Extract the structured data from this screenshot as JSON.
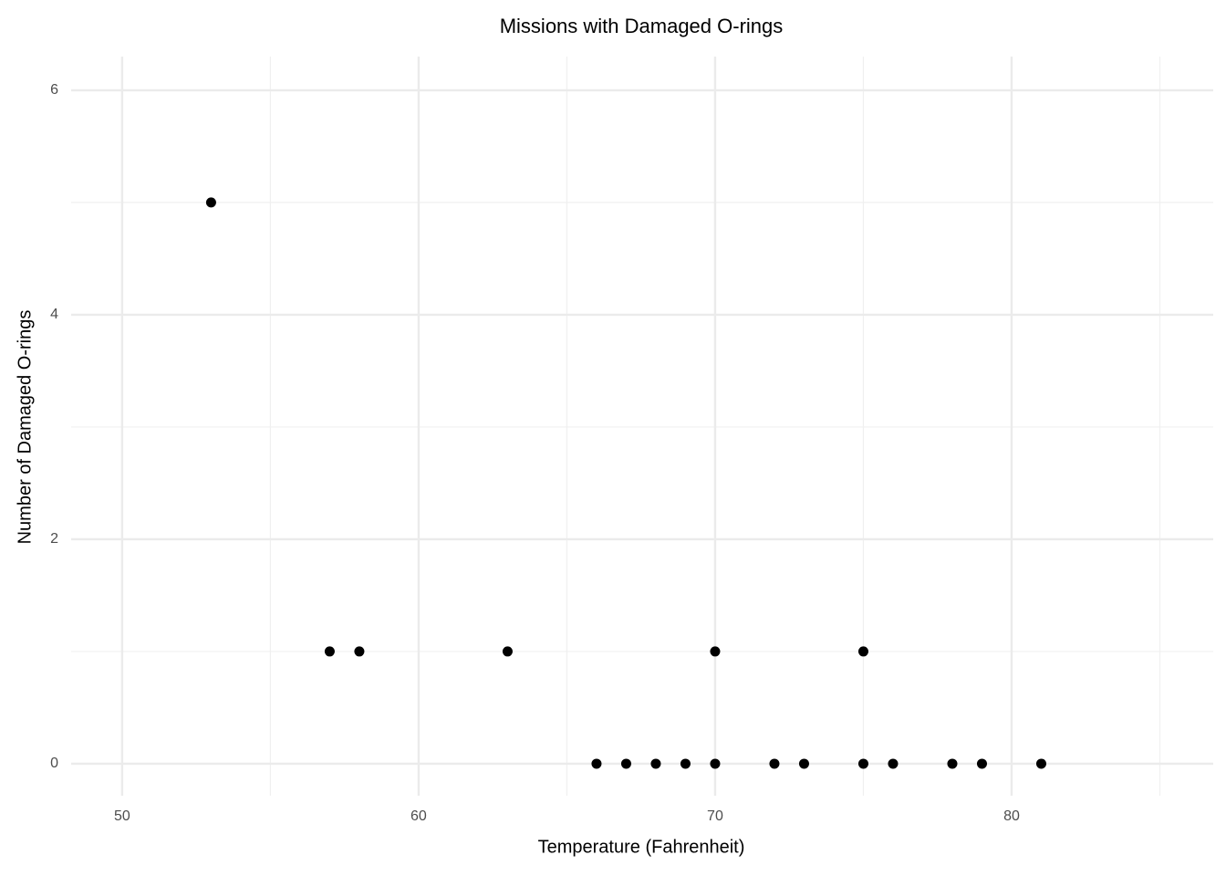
{
  "chart_data": {
    "type": "scatter",
    "title": "Missions with Damaged O-rings",
    "x_label": "Temperature (Fahrenheit)",
    "y_label": "Number of Damaged O-rings",
    "x": [
      53,
      57,
      58,
      63,
      70,
      75,
      66,
      67,
      68,
      69,
      70,
      72,
      73,
      75,
      76,
      78,
      79,
      81
    ],
    "values": [
      5,
      1,
      1,
      1,
      1,
      1,
      0,
      0,
      0,
      0,
      0,
      0,
      0,
      0,
      0,
      0,
      0,
      0
    ],
    "color": "#000000",
    "xlim": [
      48.28,
      86.8
    ],
    "ylim": [
      -0.285,
      6.3
    ],
    "xticks": [
      50,
      60,
      70,
      80
    ],
    "yticks": [
      0,
      2,
      4,
      6
    ],
    "x_minor_grid": [
      55,
      65,
      75,
      85
    ],
    "y_minor_grid": [
      1,
      3,
      5
    ],
    "grid": true
  }
}
